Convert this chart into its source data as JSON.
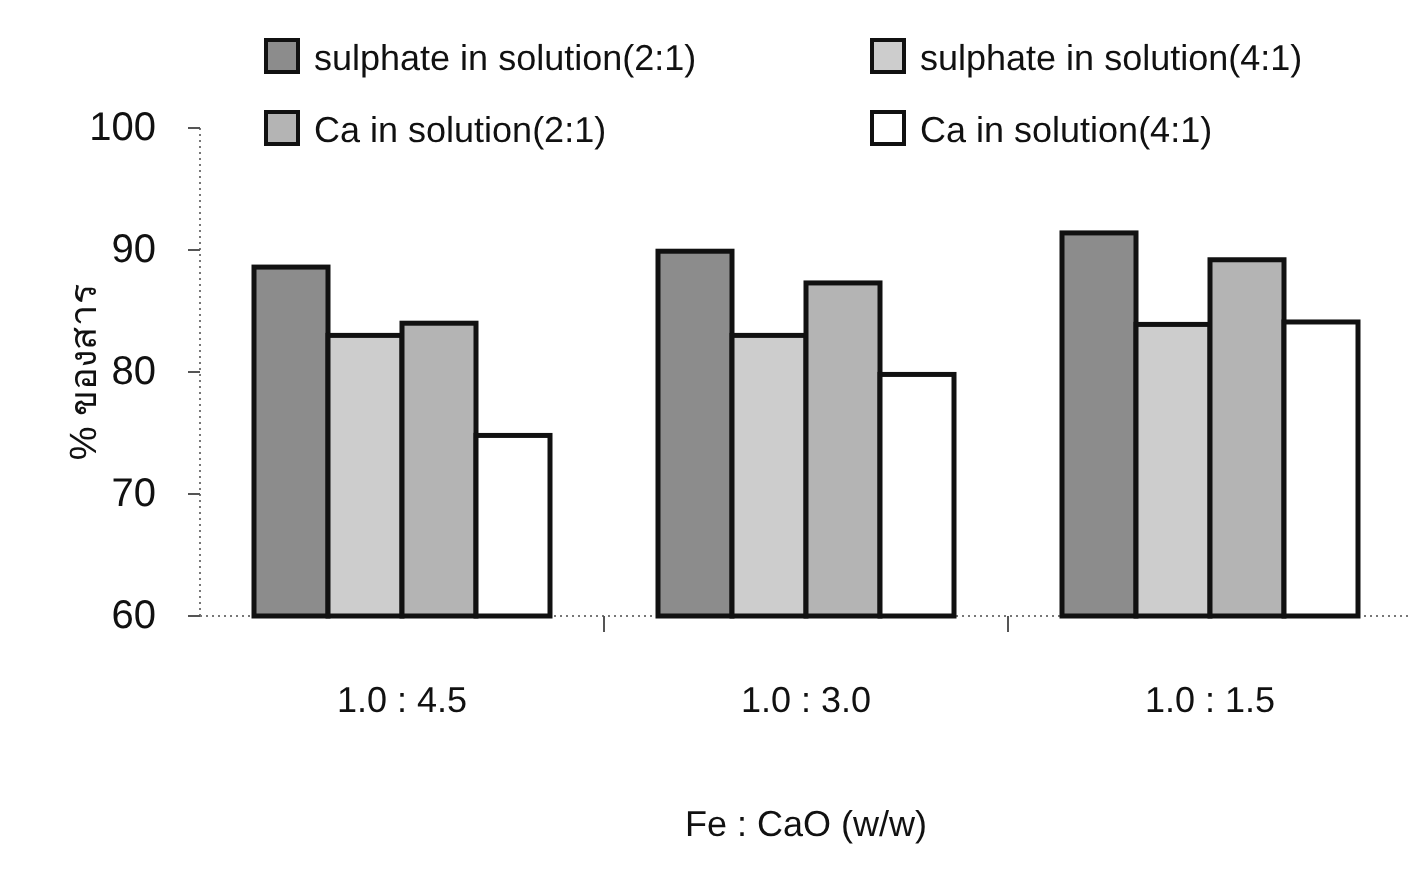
{
  "chart_data": {
    "type": "bar",
    "xlabel": "Fe : CaO (w/w)",
    "ylabel": "% ของสาร",
    "categories": [
      "1.0 : 4.5",
      "1.0 : 3.0",
      "1.0 : 1.5"
    ],
    "series": [
      {
        "name": "sulphate in solution(2:1)",
        "color": "#8c8c8c",
        "values": [
          88.6,
          89.9,
          91.4
        ]
      },
      {
        "name": "sulphate in solution(4:1)",
        "color": "#cdcdcd",
        "values": [
          83.0,
          83.0,
          83.9
        ]
      },
      {
        "name": "Ca in solution(2:1)",
        "color": "#b4b4b4",
        "values": [
          84.0,
          87.3,
          89.2
        ]
      },
      {
        "name": "Ca in solution(4:1)",
        "color": "#ffffff",
        "values": [
          74.8,
          79.8,
          84.1
        ]
      }
    ],
    "ylim": [
      60,
      100
    ],
    "yticks": [
      60,
      70,
      80,
      90,
      100
    ],
    "legend": "top"
  }
}
